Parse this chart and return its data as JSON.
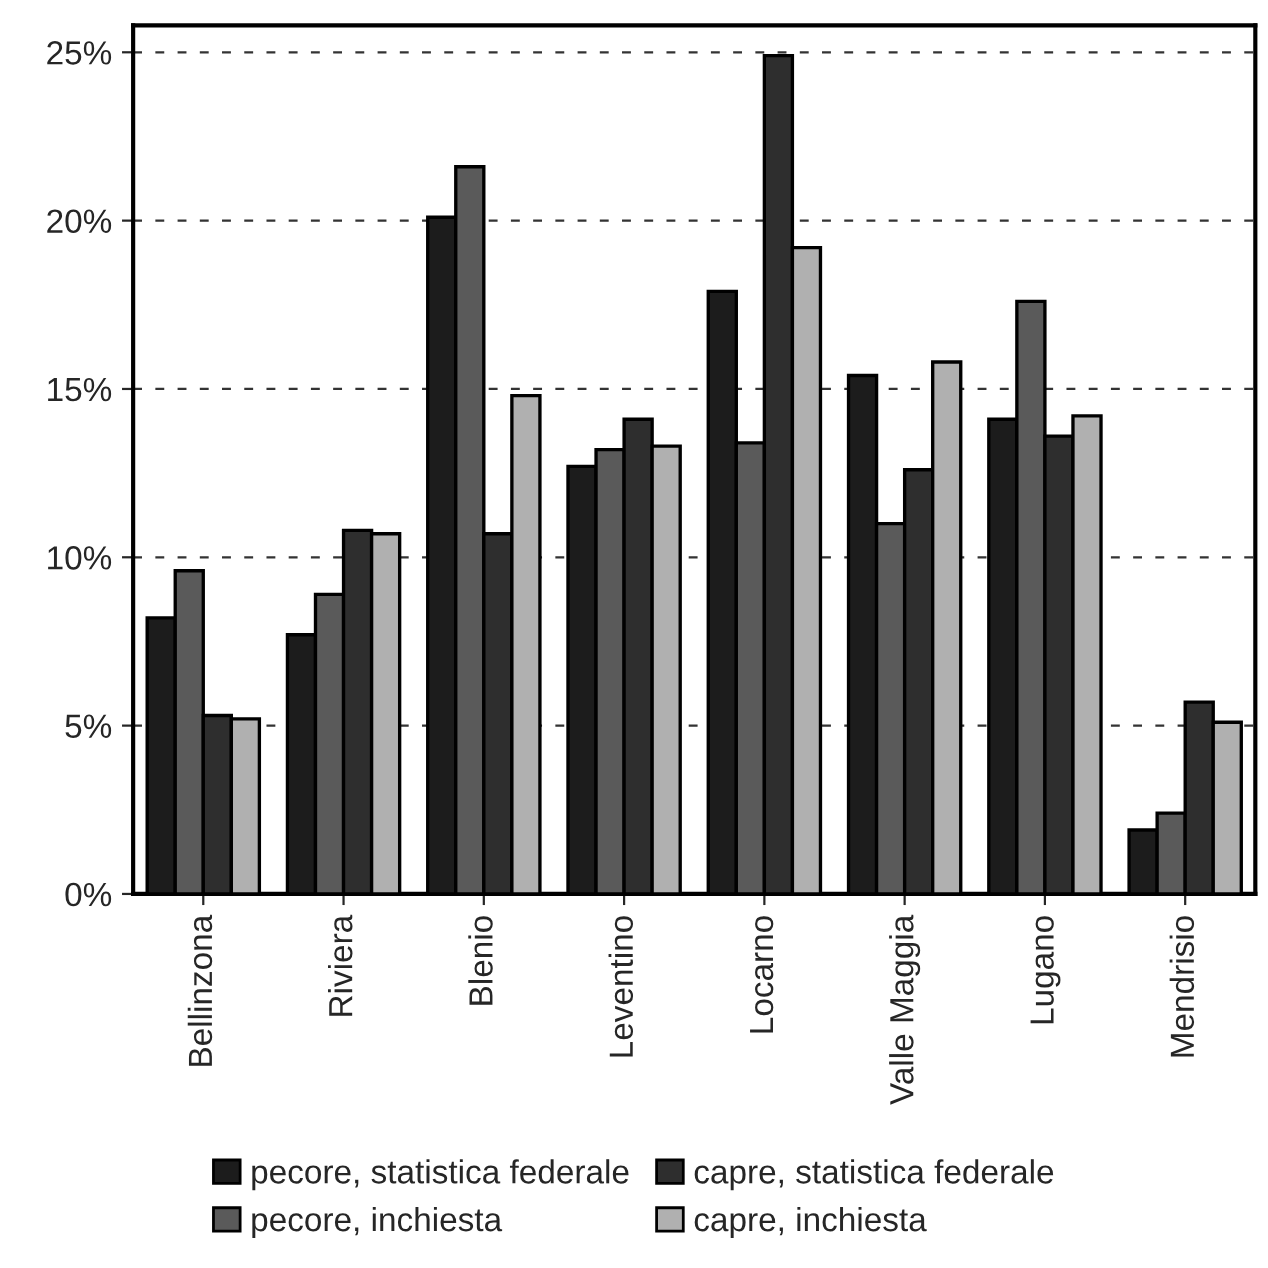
{
  "chart_data": {
    "type": "bar",
    "categories": [
      "Bellinzona",
      "Riviera",
      "Blenio",
      "Leventino",
      "Locarno",
      "Valle Maggia",
      "Lugano",
      "Mendrisio"
    ],
    "series": [
      {
        "name": "pecore, statistica federale",
        "color": "#1c1c1c",
        "values": [
          8.2,
          7.7,
          20.1,
          12.7,
          17.9,
          15.4,
          14.1,
          1.9
        ]
      },
      {
        "name": "pecore, inchiesta",
        "color": "#5a5a5a",
        "values": [
          9.6,
          8.9,
          21.6,
          13.2,
          13.4,
          11.0,
          17.6,
          2.4
        ]
      },
      {
        "name": "capre, statistica federale",
        "color": "#2e2e2e",
        "values": [
          5.3,
          10.8,
          10.7,
          14.1,
          24.9,
          12.6,
          13.6,
          5.7
        ]
      },
      {
        "name": "capre, inchiesta",
        "color": "#b0b0b0",
        "values": [
          5.2,
          10.7,
          14.8,
          13.3,
          19.2,
          15.8,
          14.2,
          5.1
        ]
      }
    ],
    "ylim": [
      0,
      25.8
    ],
    "yticks": [
      {
        "value": 0,
        "label": "0%"
      },
      {
        "value": 5,
        "label": "5%"
      },
      {
        "value": 10,
        "label": "10%"
      },
      {
        "value": 15,
        "label": "15%"
      },
      {
        "value": 20,
        "label": "20%"
      },
      {
        "value": 25,
        "label": "25%"
      }
    ],
    "grid": "y",
    "legend": "bottom"
  }
}
